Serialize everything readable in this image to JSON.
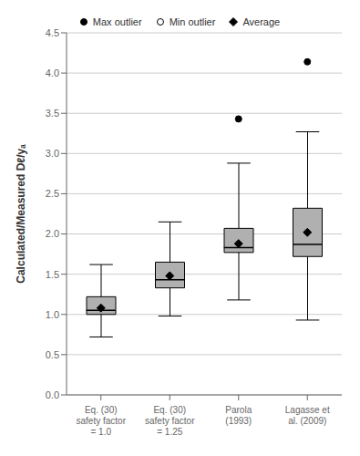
{
  "chart_data": {
    "type": "box",
    "categories": [
      "Eq. (30)\nsafety factor\n= 1.0",
      "Eq. (30)\nsafety factor\n= 1.25",
      "Parola\n(1993)",
      "Lagasse et\nal. (2009)"
    ],
    "boxes": [
      {
        "q1": 1.0,
        "median": 1.05,
        "q3": 1.22,
        "whisker_low": 0.72,
        "whisker_high": 1.62
      },
      {
        "q1": 1.33,
        "median": 1.43,
        "q3": 1.65,
        "whisker_low": 0.98,
        "whisker_high": 2.15
      },
      {
        "q1": 1.77,
        "median": 1.83,
        "q3": 2.07,
        "whisker_low": 1.18,
        "whisker_high": 2.88
      },
      {
        "q1": 1.72,
        "median": 1.87,
        "q3": 2.32,
        "whisker_low": 0.93,
        "whisker_high": 3.27
      }
    ],
    "color": "#b0b0b0",
    "series": [
      {
        "name": "Max outlier",
        "marker": "circle",
        "color": "#000000",
        "values": [
          null,
          null,
          3.43,
          4.14
        ]
      },
      {
        "name": "Min outlier",
        "marker": "open_circle",
        "color": "#000000",
        "values": [
          null,
          null,
          null,
          null
        ]
      },
      {
        "name": "Average",
        "marker": "diamond",
        "color": "#000000",
        "values": [
          1.08,
          1.48,
          1.88,
          2.02
        ]
      }
    ],
    "ylabel": "Calculated/Measured Dℓ/yₐ",
    "ylim": [
      0,
      4.5
    ],
    "yticks": [
      {
        "value": 0,
        "label": "0.0"
      },
      0.5,
      {
        "value": 1.0,
        "label": "1.0"
      },
      1.5,
      {
        "value": 2.0,
        "label": "2.0"
      },
      2.5,
      {
        "value": 3.0,
        "label": "3.0"
      },
      3.5,
      {
        "value": 4.0,
        "label": "4.0"
      },
      4.5
    ],
    "grid": true,
    "legend": "top"
  }
}
